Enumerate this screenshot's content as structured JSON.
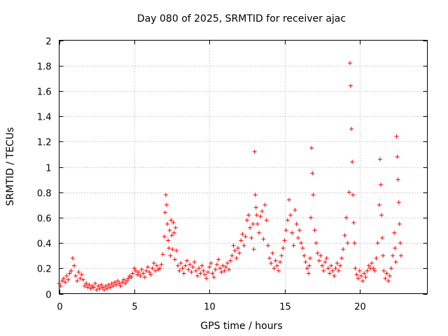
{
  "chart_data": {
    "type": "scatter",
    "title": "Day 080 of 2025, SRMTID for receiver ajac",
    "xlabel": "GPS time / hours",
    "ylabel": "SRMTID / TECUs",
    "xlim": [
      0,
      24.5
    ],
    "ylim": [
      0,
      2
    ],
    "xticks": [
      0,
      5,
      10,
      15,
      20
    ],
    "xtick_labels": [
      "0",
      "5",
      "10",
      "15",
      "20"
    ],
    "yticks": [
      0,
      0.2,
      0.4,
      0.6,
      0.8,
      1,
      1.2,
      1.4,
      1.6,
      1.8,
      2
    ],
    "ytick_labels": [
      "0",
      "0.2",
      "0.4",
      "0.6",
      "0.8",
      "1",
      "1.2",
      "1.4",
      "1.6",
      "1.8",
      "2"
    ],
    "grid": true,
    "marker": "+",
    "color": "#ff0000",
    "series": [
      {
        "name": "SRMTID",
        "x": [
          0.0,
          0.1,
          0.2,
          0.3,
          0.4,
          0.5,
          0.6,
          0.7,
          0.8,
          0.9,
          1.0,
          1.1,
          1.2,
          1.3,
          1.4,
          1.5,
          1.6,
          1.7,
          1.8,
          1.9,
          2.0,
          2.1,
          2.2,
          2.3,
          2.4,
          2.5,
          2.6,
          2.7,
          2.8,
          2.9,
          3.0,
          3.1,
          3.2,
          3.3,
          3.4,
          3.5,
          3.6,
          3.7,
          3.8,
          3.9,
          4.0,
          4.1,
          4.2,
          4.3,
          4.4,
          4.5,
          4.6,
          4.7,
          4.8,
          4.9,
          5.0,
          5.1,
          5.2,
          5.3,
          5.4,
          5.5,
          5.6,
          5.7,
          5.8,
          5.9,
          6.0,
          6.1,
          6.2,
          6.3,
          6.4,
          6.5,
          6.6,
          6.7,
          6.8,
          6.9,
          7.0,
          7.05,
          7.1,
          7.15,
          7.2,
          7.25,
          7.3,
          7.35,
          7.4,
          7.45,
          7.5,
          7.55,
          7.6,
          7.65,
          7.7,
          7.75,
          7.8,
          7.9,
          8.0,
          8.1,
          8.2,
          8.3,
          8.4,
          8.5,
          8.6,
          8.7,
          8.8,
          8.9,
          9.0,
          9.1,
          9.2,
          9.3,
          9.4,
          9.5,
          9.6,
          9.7,
          9.8,
          9.9,
          10.0,
          10.1,
          10.2,
          10.3,
          10.4,
          10.5,
          10.6,
          10.7,
          10.8,
          10.9,
          11.0,
          11.1,
          11.2,
          11.3,
          11.4,
          11.5,
          11.6,
          11.7,
          11.8,
          11.9,
          12.0,
          12.1,
          12.2,
          12.3,
          12.4,
          12.5,
          12.6,
          12.7,
          12.8,
          12.9,
          12.95,
          13.0,
          13.05,
          13.1,
          13.15,
          13.2,
          13.3,
          13.4,
          13.5,
          13.6,
          13.7,
          13.8,
          13.9,
          14.0,
          14.1,
          14.2,
          14.3,
          14.4,
          14.5,
          14.6,
          14.7,
          14.8,
          14.9,
          15.0,
          15.1,
          15.2,
          15.3,
          15.4,
          15.5,
          15.6,
          15.7,
          15.8,
          15.9,
          16.0,
          16.1,
          16.2,
          16.3,
          16.4,
          16.5,
          16.6,
          16.65,
          16.7,
          16.75,
          16.8,
          16.85,
          16.9,
          17.0,
          17.1,
          17.2,
          17.3,
          17.4,
          17.5,
          17.6,
          17.7,
          17.8,
          17.9,
          18.0,
          18.1,
          18.2,
          18.3,
          18.4,
          18.5,
          18.6,
          18.7,
          18.8,
          18.9,
          19.0,
          19.1,
          19.2,
          19.3,
          19.35,
          19.4,
          19.45,
          19.5,
          19.55,
          19.6,
          19.65,
          19.7,
          19.8,
          19.9,
          20.0,
          20.1,
          20.2,
          20.3,
          20.4,
          20.5,
          20.6,
          20.7,
          20.8,
          20.9,
          21.0,
          21.1,
          21.2,
          21.3,
          21.35,
          21.4,
          21.45,
          21.5,
          21.55,
          21.6,
          21.7,
          21.8,
          21.9,
          22.0,
          22.1,
          22.2,
          22.3,
          22.35,
          22.4,
          22.45,
          22.5,
          22.55,
          22.6,
          22.65,
          22.7,
          22.75
        ],
        "y": [
          0.08,
          0.06,
          0.1,
          0.12,
          0.09,
          0.14,
          0.11,
          0.16,
          0.18,
          0.28,
          0.22,
          0.14,
          0.1,
          0.17,
          0.12,
          0.15,
          0.11,
          0.06,
          0.08,
          0.05,
          0.07,
          0.04,
          0.06,
          0.05,
          0.08,
          0.03,
          0.06,
          0.04,
          0.07,
          0.05,
          0.03,
          0.06,
          0.04,
          0.07,
          0.05,
          0.08,
          0.06,
          0.09,
          0.07,
          0.1,
          0.08,
          0.06,
          0.09,
          0.11,
          0.08,
          0.1,
          0.12,
          0.14,
          0.13,
          0.16,
          0.2,
          0.18,
          0.15,
          0.17,
          0.14,
          0.19,
          0.16,
          0.13,
          0.18,
          0.21,
          0.17,
          0.15,
          0.2,
          0.24,
          0.18,
          0.22,
          0.19,
          0.2,
          0.23,
          0.31,
          0.45,
          0.64,
          0.78,
          0.7,
          0.55,
          0.42,
          0.36,
          0.5,
          0.3,
          0.58,
          0.46,
          0.35,
          0.56,
          0.48,
          0.27,
          0.52,
          0.34,
          0.22,
          0.18,
          0.24,
          0.2,
          0.16,
          0.22,
          0.26,
          0.19,
          0.23,
          0.17,
          0.21,
          0.25,
          0.18,
          0.14,
          0.2,
          0.16,
          0.22,
          0.18,
          0.15,
          0.12,
          0.17,
          0.21,
          0.24,
          0.16,
          0.13,
          0.19,
          0.23,
          0.27,
          0.2,
          0.17,
          0.22,
          0.18,
          0.21,
          0.24,
          0.19,
          0.26,
          0.3,
          0.38,
          0.34,
          0.28,
          0.36,
          0.32,
          0.42,
          0.47,
          0.38,
          0.45,
          0.58,
          0.62,
          0.52,
          0.44,
          0.55,
          0.35,
          1.12,
          0.78,
          0.68,
          0.62,
          0.55,
          0.48,
          0.61,
          0.65,
          0.43,
          0.7,
          0.58,
          0.38,
          0.28,
          0.24,
          0.32,
          0.2,
          0.26,
          0.22,
          0.18,
          0.25,
          0.3,
          0.36,
          0.42,
          0.5,
          0.58,
          0.74,
          0.62,
          0.48,
          0.38,
          0.66,
          0.55,
          0.44,
          0.5,
          0.4,
          0.36,
          0.3,
          0.25,
          0.2,
          0.16,
          0.22,
          0.28,
          0.6,
          1.15,
          0.95,
          0.78,
          0.5,
          0.4,
          0.32,
          0.26,
          0.3,
          0.22,
          0.18,
          0.25,
          0.28,
          0.2,
          0.16,
          0.22,
          0.18,
          0.14,
          0.2,
          0.24,
          0.18,
          0.22,
          0.28,
          0.35,
          0.46,
          0.6,
          0.4,
          0.8,
          1.82,
          1.64,
          1.3,
          1.04,
          0.78,
          0.56,
          0.4,
          0.2,
          0.15,
          0.12,
          0.18,
          0.14,
          0.1,
          0.16,
          0.13,
          0.18,
          0.22,
          0.2,
          0.24,
          0.2,
          0.18,
          0.28,
          0.4,
          0.7,
          1.06,
          0.86,
          0.62,
          0.44,
          0.3,
          0.18,
          0.12,
          0.16,
          0.1,
          0.14,
          0.2,
          0.3,
          0.48,
          0.36,
          0.25,
          1.24,
          1.08,
          0.9,
          0.72,
          0.55,
          0.4,
          0.3
        ]
      }
    ]
  }
}
